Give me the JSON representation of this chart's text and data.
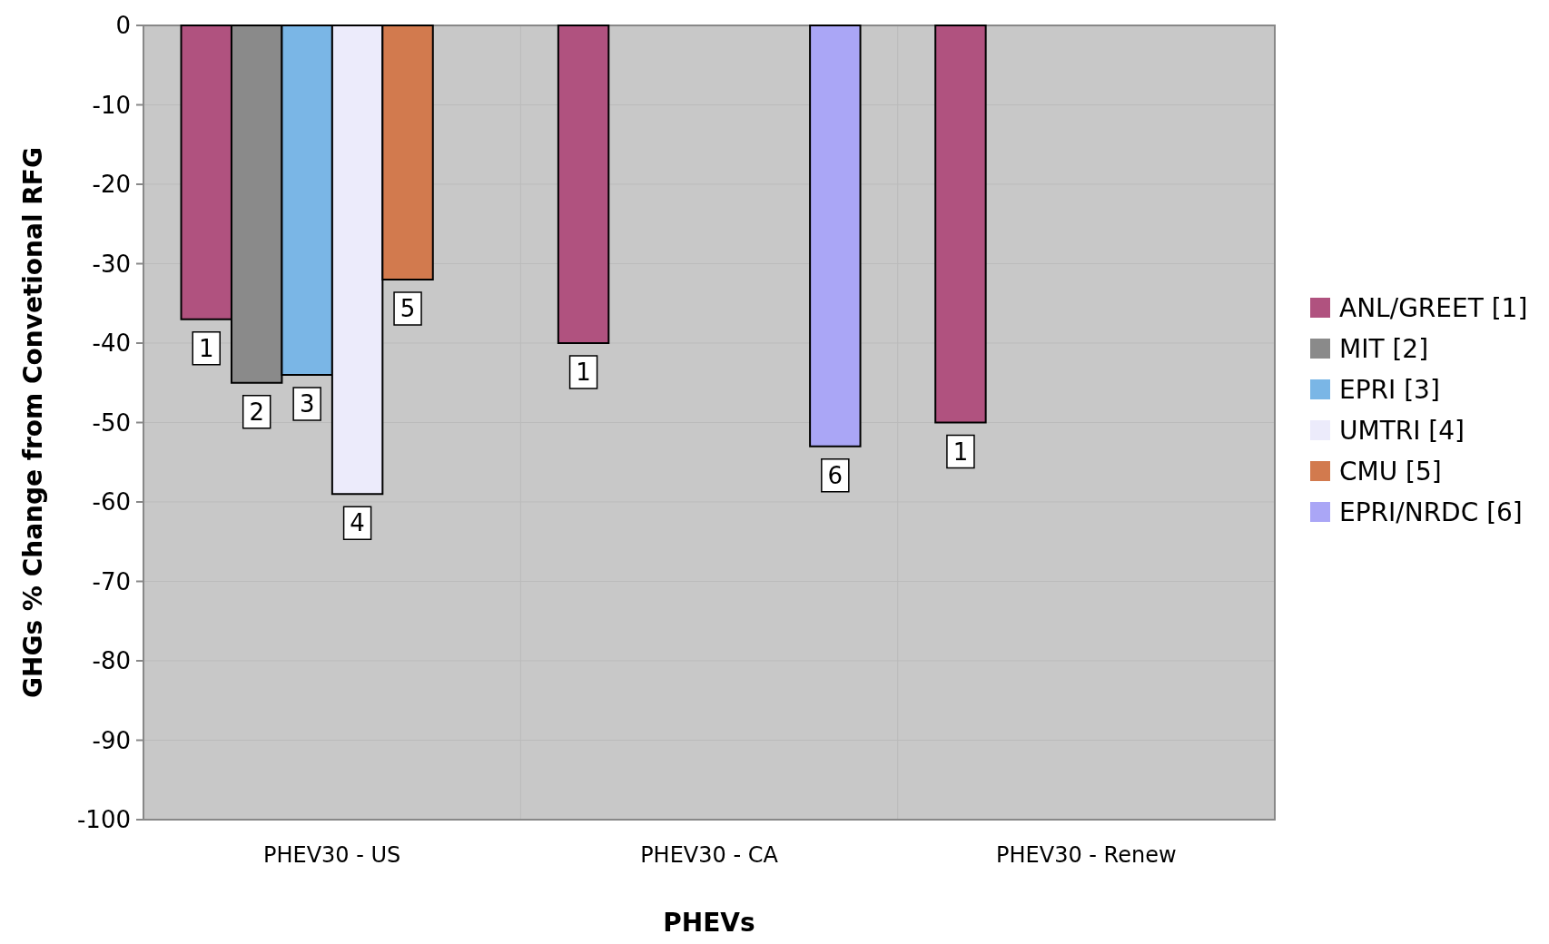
{
  "chart_data": {
    "type": "bar",
    "xlabel": "PHEVs",
    "ylabel": "GHGs % Change from Convetional RFG",
    "categories": [
      "PHEV30 - US",
      "PHEV30 - CA",
      "PHEV30 - Renew"
    ],
    "series": [
      {
        "name": "ANL/GREET [1]",
        "color": "#b0527f",
        "values": [
          -37,
          -40,
          -50
        ]
      },
      {
        "name": "MIT [2]",
        "color": "#8a8a8a",
        "values": [
          -45,
          null,
          null
        ]
      },
      {
        "name": "EPRI [3]",
        "color": "#7ab6e6",
        "values": [
          -44,
          null,
          null
        ]
      },
      {
        "name": "UMTRI [4]",
        "color": "#ecebfb",
        "values": [
          -59,
          null,
          null
        ]
      },
      {
        "name": "CMU [5]",
        "color": "#d27a4e",
        "values": [
          -32,
          null,
          null
        ]
      },
      {
        "name": "EPRI/NRDC [6]",
        "color": "#aaa6f6",
        "values": [
          null,
          -53,
          null
        ]
      }
    ],
    "annotations": [
      "1",
      "1",
      "1",
      "2",
      "3",
      "4",
      "5",
      "6"
    ],
    "ylim": [
      -100,
      0
    ],
    "yticks": [
      -100,
      -90,
      -80,
      -70,
      -60,
      -50,
      -40,
      -30,
      -20,
      -10,
      0
    ],
    "grid": true,
    "legend": "right"
  }
}
